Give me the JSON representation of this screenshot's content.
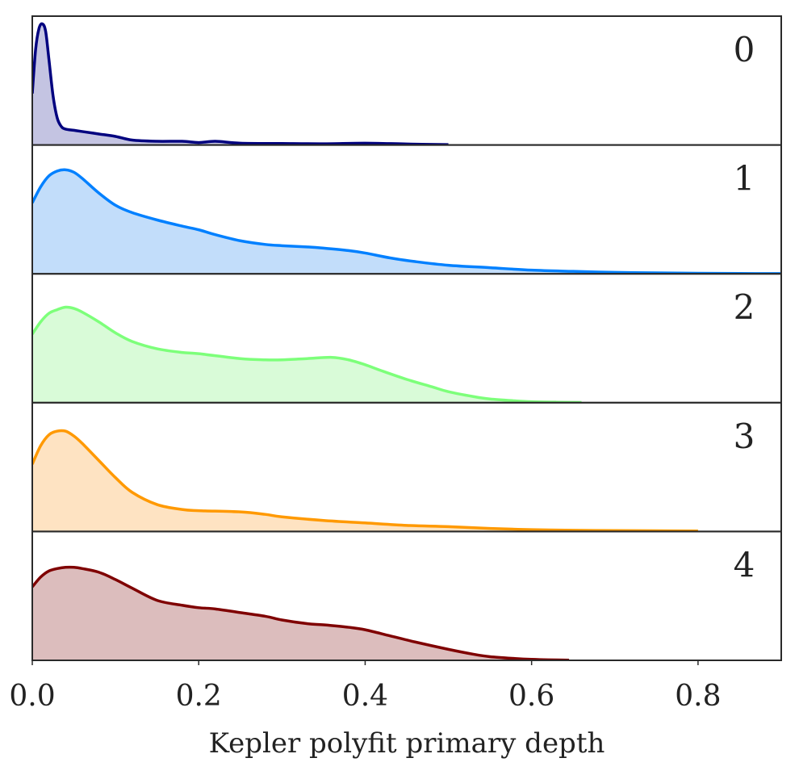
{
  "chart_data": {
    "type": "area",
    "title": "",
    "xlabel": "Kepler polyfit primary depth",
    "ylabel": "",
    "xlim": [
      0.0,
      0.9
    ],
    "x_ticks": [
      0.0,
      0.2,
      0.4,
      0.6,
      0.8
    ],
    "x_tick_labels": [
      "0.0",
      "0.2",
      "0.4",
      "0.6",
      "0.8"
    ],
    "grid": false,
    "legend": "none",
    "series": [
      {
        "name": "0",
        "color": "#00007f",
        "fill": "#c4c4e2",
        "ymax": 1.0,
        "x": [
          0.0,
          0.004,
          0.008,
          0.012,
          0.016,
          0.02,
          0.025,
          0.03,
          0.035,
          0.04,
          0.05,
          0.06,
          0.08,
          0.1,
          0.12,
          0.15,
          0.18,
          0.2,
          0.22,
          0.25,
          0.3,
          0.35,
          0.4,
          0.45,
          0.5
        ],
        "y": [
          0.42,
          0.78,
          0.95,
          0.99,
          0.93,
          0.7,
          0.4,
          0.22,
          0.15,
          0.13,
          0.12,
          0.11,
          0.09,
          0.07,
          0.04,
          0.03,
          0.03,
          0.02,
          0.03,
          0.015,
          0.012,
          0.01,
          0.015,
          0.008,
          0.003
        ]
      },
      {
        "name": "1",
        "color": "#0080ff",
        "fill": "#c2ddfa",
        "ymax": 1.0,
        "x": [
          0.0,
          0.01,
          0.02,
          0.03,
          0.04,
          0.05,
          0.06,
          0.08,
          0.1,
          0.12,
          0.15,
          0.18,
          0.2,
          0.22,
          0.25,
          0.28,
          0.3,
          0.33,
          0.35,
          0.38,
          0.4,
          0.43,
          0.46,
          0.5,
          0.55,
          0.6,
          0.65,
          0.7,
          0.75,
          0.8,
          0.85,
          0.9
        ],
        "y": [
          0.58,
          0.71,
          0.8,
          0.84,
          0.85,
          0.83,
          0.78,
          0.66,
          0.56,
          0.5,
          0.44,
          0.39,
          0.36,
          0.32,
          0.27,
          0.24,
          0.23,
          0.22,
          0.21,
          0.19,
          0.17,
          0.13,
          0.1,
          0.07,
          0.05,
          0.03,
          0.02,
          0.012,
          0.008,
          0.005,
          0.003,
          0.002
        ]
      },
      {
        "name": "2",
        "color": "#7dff7a",
        "fill": "#d9fbd8",
        "ymax": 1.0,
        "x": [
          0.0,
          0.01,
          0.02,
          0.03,
          0.04,
          0.05,
          0.06,
          0.08,
          0.1,
          0.12,
          0.15,
          0.18,
          0.2,
          0.25,
          0.28,
          0.3,
          0.33,
          0.36,
          0.38,
          0.4,
          0.42,
          0.45,
          0.48,
          0.5,
          0.53,
          0.55,
          0.58,
          0.6,
          0.63,
          0.66
        ],
        "y": [
          0.56,
          0.66,
          0.73,
          0.76,
          0.78,
          0.77,
          0.74,
          0.66,
          0.57,
          0.5,
          0.44,
          0.41,
          0.4,
          0.36,
          0.35,
          0.35,
          0.36,
          0.37,
          0.35,
          0.31,
          0.26,
          0.19,
          0.13,
          0.09,
          0.05,
          0.03,
          0.015,
          0.008,
          0.004,
          0.002
        ]
      },
      {
        "name": "3",
        "color": "#ff9900",
        "fill": "#fee3c2",
        "ymax": 1.0,
        "x": [
          0.0,
          0.01,
          0.02,
          0.03,
          0.04,
          0.05,
          0.06,
          0.08,
          0.1,
          0.12,
          0.15,
          0.18,
          0.2,
          0.25,
          0.28,
          0.3,
          0.35,
          0.4,
          0.45,
          0.5,
          0.55,
          0.6,
          0.65,
          0.7,
          0.75,
          0.8
        ],
        "y": [
          0.55,
          0.7,
          0.79,
          0.82,
          0.82,
          0.78,
          0.72,
          0.58,
          0.44,
          0.32,
          0.22,
          0.18,
          0.17,
          0.16,
          0.14,
          0.12,
          0.09,
          0.07,
          0.05,
          0.04,
          0.025,
          0.015,
          0.01,
          0.008,
          0.006,
          0.004
        ]
      },
      {
        "name": "4",
        "color": "#7f0000",
        "fill": "#dcbdbd",
        "ymax": 1.0,
        "x": [
          0.0,
          0.01,
          0.02,
          0.03,
          0.04,
          0.05,
          0.06,
          0.08,
          0.1,
          0.12,
          0.15,
          0.18,
          0.2,
          0.22,
          0.25,
          0.28,
          0.3,
          0.33,
          0.35,
          0.38,
          0.4,
          0.43,
          0.46,
          0.5,
          0.53,
          0.55,
          0.58,
          0.6,
          0.62,
          0.645
        ],
        "y": [
          0.6,
          0.68,
          0.73,
          0.75,
          0.76,
          0.76,
          0.75,
          0.72,
          0.66,
          0.59,
          0.49,
          0.45,
          0.43,
          0.42,
          0.39,
          0.36,
          0.33,
          0.3,
          0.29,
          0.27,
          0.25,
          0.2,
          0.15,
          0.09,
          0.05,
          0.03,
          0.015,
          0.008,
          0.004,
          0.002
        ]
      }
    ]
  }
}
